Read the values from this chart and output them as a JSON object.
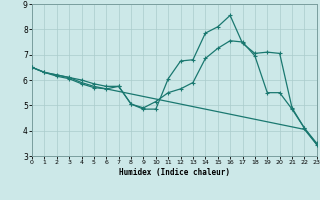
{
  "xlabel": "Humidex (Indice chaleur)",
  "bg_color": "#cce8e8",
  "grid_color": "#aacccc",
  "line_color": "#1a7870",
  "xlim": [
    0,
    23
  ],
  "ylim": [
    3,
    9
  ],
  "xticks": [
    0,
    1,
    2,
    3,
    4,
    5,
    6,
    7,
    8,
    9,
    10,
    11,
    12,
    13,
    14,
    15,
    16,
    17,
    18,
    19,
    20,
    21,
    22,
    23
  ],
  "yticks": [
    3,
    4,
    5,
    6,
    7,
    8,
    9
  ],
  "line1_x": [
    0,
    1,
    2,
    3,
    4,
    5,
    6,
    7,
    8,
    9,
    10,
    11,
    12,
    13,
    14,
    15,
    16,
    17,
    18,
    19,
    20,
    21,
    22,
    23
  ],
  "line1_y": [
    6.5,
    6.3,
    6.2,
    6.1,
    5.9,
    5.75,
    5.65,
    5.55,
    5.45,
    5.35,
    5.25,
    5.15,
    5.05,
    4.95,
    4.85,
    4.75,
    4.65,
    4.55,
    4.45,
    4.35,
    4.25,
    4.15,
    4.05,
    3.45
  ],
  "line2_x": [
    0,
    1,
    2,
    3,
    4,
    5,
    6,
    7,
    8,
    9,
    10,
    11,
    12,
    13,
    14,
    15,
    16,
    17,
    18,
    19,
    20,
    21,
    22,
    23
  ],
  "line2_y": [
    6.5,
    6.3,
    6.2,
    6.1,
    6.0,
    5.85,
    5.75,
    5.75,
    5.05,
    4.85,
    4.85,
    6.05,
    6.75,
    6.8,
    7.85,
    8.1,
    8.55,
    7.45,
    7.05,
    7.1,
    7.05,
    4.9,
    4.1,
    3.45
  ],
  "line3_x": [
    0,
    1,
    2,
    3,
    4,
    5,
    6,
    7,
    8,
    9,
    10,
    11,
    12,
    13,
    14,
    15,
    16,
    17,
    18,
    19,
    20,
    21,
    22,
    23
  ],
  "line3_y": [
    6.5,
    6.3,
    6.15,
    6.05,
    5.85,
    5.7,
    5.65,
    5.75,
    5.05,
    4.9,
    5.15,
    5.5,
    5.65,
    5.9,
    6.85,
    7.25,
    7.55,
    7.5,
    6.95,
    5.5,
    5.5,
    4.85,
    4.1,
    3.5
  ]
}
